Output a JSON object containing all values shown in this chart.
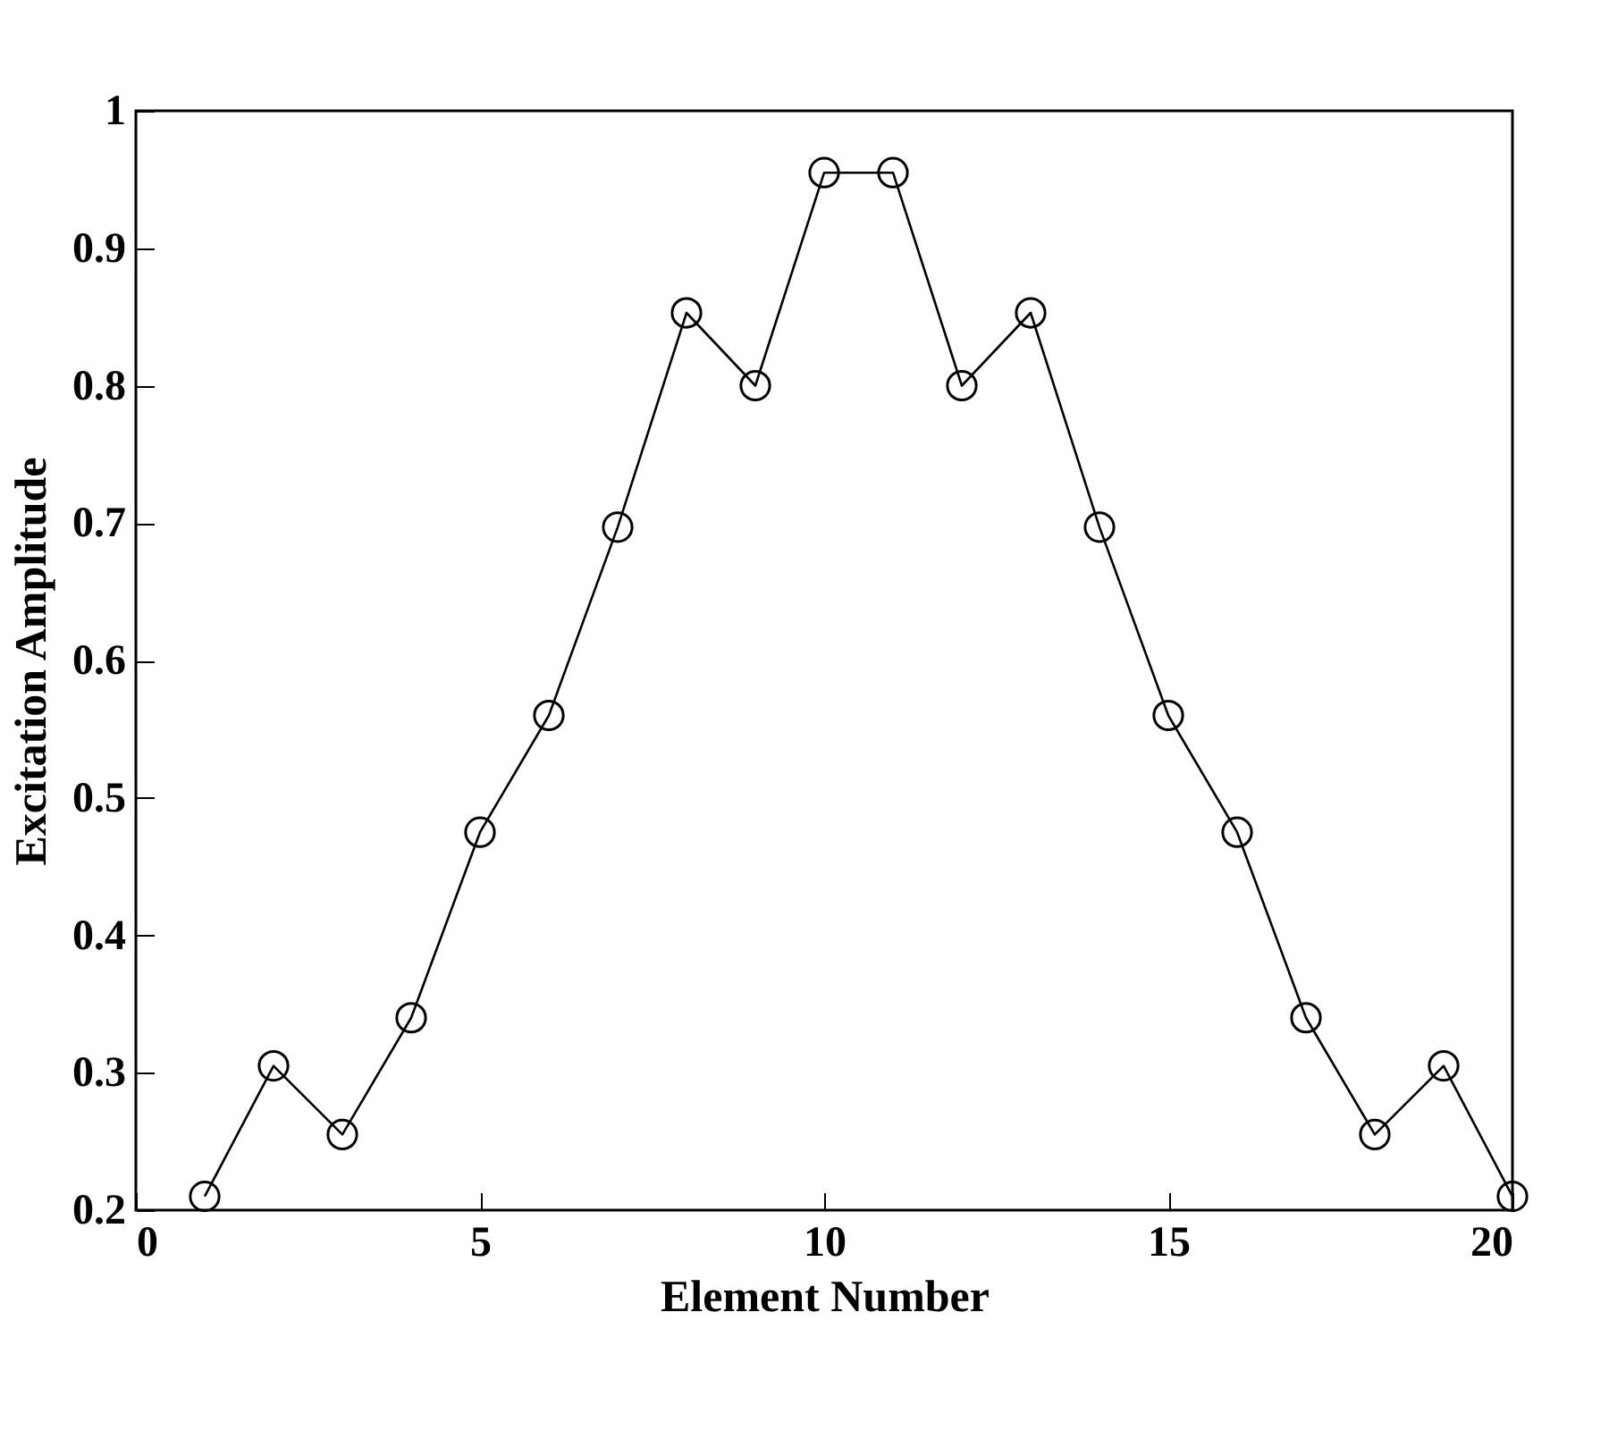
{
  "chart_data": {
    "type": "line",
    "xlabel": "Element Number",
    "ylabel": "Excitation Amplitude",
    "x": [
      1,
      2,
      3,
      4,
      5,
      6,
      7,
      8,
      9,
      10,
      11,
      12,
      13,
      14,
      15,
      16,
      17,
      18,
      19,
      20
    ],
    "series": [
      {
        "color": "#000000",
        "values": [
          0.21,
          0.305,
          0.255,
          0.34,
          0.475,
          0.56,
          0.697,
          0.853,
          0.8,
          0.955,
          0.955,
          0.8,
          0.853,
          0.697,
          0.56,
          0.475,
          0.34,
          0.255,
          0.305,
          0.21
        ]
      }
    ],
    "xlim": [
      0,
      20
    ],
    "xticks": [
      0,
      5,
      10,
      15,
      20
    ],
    "ylim": [
      0.2,
      1
    ],
    "yticks": [
      0.2,
      0.3,
      0.4,
      0.5,
      0.6,
      0.7,
      0.8,
      0.9,
      1
    ],
    "grid": false,
    "marker": "circle",
    "line_style": "solid"
  }
}
